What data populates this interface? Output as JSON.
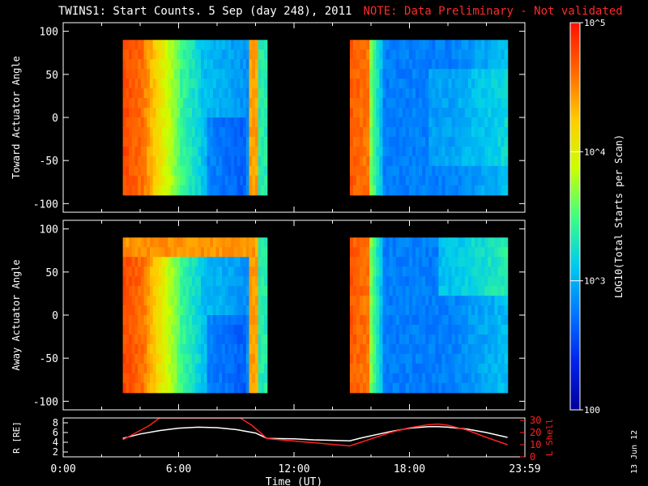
{
  "title": "TWINS1: Start Counts.  5 Sep (day 248), 2011",
  "note": "NOTE: Data Preliminary - Not validated",
  "date_stamp": "13 Jun 12",
  "colorbar": {
    "label": "LOG10(Total Starts per Scan)",
    "tick_labels": [
      "10^5",
      "10^4",
      "10^3",
      "100"
    ],
    "range": [
      100,
      100000
    ],
    "scale": "log",
    "colormap": [
      "#000099",
      "#0022ee",
      "#0077ff",
      "#00ccee",
      "#40ff80",
      "#ccff00",
      "#ffcc00",
      "#ff6600",
      "#ff1100"
    ]
  },
  "colors": {
    "background": "#000000",
    "axes": "#ffffff",
    "lshell": "#ff2020",
    "note": "#ff2a2a"
  },
  "chart_data": [
    {
      "type": "heatmap",
      "ylabel": "Toward Actuator Angle",
      "ylim": [
        -110,
        110
      ],
      "yticks": [
        -100,
        -50,
        0,
        50,
        100
      ],
      "xlim": [
        0,
        24
      ],
      "data_intervals_hours": [
        [
          3.1,
          10.6
        ],
        [
          14.9,
          23.1
        ]
      ],
      "notes": "Log counts; high (red/orange) near 3-5 UT and 15-16 UT, low (blue) mid-interval"
    },
    {
      "type": "heatmap",
      "ylabel": "Away Actuator Angle",
      "ylim": [
        -110,
        110
      ],
      "yticks": [
        -100,
        -50,
        0,
        50,
        100
      ],
      "xlim": [
        0,
        24
      ],
      "data_intervals_hours": [
        [
          3.1,
          10.6
        ],
        [
          14.9,
          23.1
        ]
      ]
    },
    {
      "type": "line",
      "ylabel": "R [RE]",
      "y2label": "L Shell",
      "ylim": [
        1,
        9
      ],
      "yticks": [
        2,
        4,
        6,
        8
      ],
      "y2lim": [
        0,
        32
      ],
      "y2ticks": [
        0,
        10,
        20,
        30
      ],
      "xlim": [
        0,
        24
      ],
      "xticks": [
        "0:00",
        "6:00",
        "12:00",
        "18:00",
        "23:59"
      ],
      "xlabel": "Time (UT)",
      "series": [
        {
          "name": "R [RE]",
          "color": "#ffffff",
          "x": [
            3.1,
            4,
            5,
            6,
            7,
            8,
            9,
            10,
            10.6,
            12,
            13,
            14,
            14.9,
            15.5,
            17,
            18,
            19,
            19.5,
            20,
            21,
            22,
            23.1
          ],
          "y": [
            4.8,
            5.7,
            6.4,
            6.9,
            7.1,
            7.0,
            6.6,
            5.9,
            4.8,
            4.7,
            4.5,
            4.4,
            4.3,
            4.9,
            6.2,
            6.9,
            7.2,
            7.2,
            7.1,
            6.7,
            6.0,
            5.0
          ]
        },
        {
          "name": "L Shell",
          "color": "#ff2020",
          "x": [
            3.1,
            4.5,
            5.0,
            9.2,
            9.8,
            10.6,
            14.9,
            17,
            18,
            19,
            19.5,
            20,
            21,
            22,
            23.1
          ],
          "y": [
            14,
            26,
            32,
            32,
            26,
            15,
            9,
            20,
            24,
            26.5,
            27,
            26,
            22,
            16,
            10
          ]
        }
      ]
    }
  ]
}
